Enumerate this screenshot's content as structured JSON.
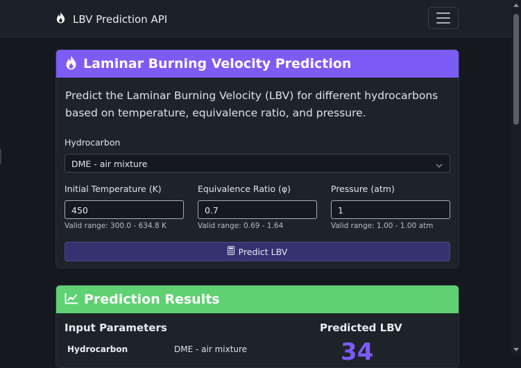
{
  "navbar": {
    "brand": "LBV Prediction API",
    "brand_icon": "flame-icon",
    "menu_icon": "hamburger-icon"
  },
  "form_card": {
    "title": "Laminar Burning Velocity Prediction",
    "title_icon": "flame-icon",
    "lead": "Predict the Laminar Burning Velocity (LBV) for different hydrocarbons based on temperature, equivalence ratio, and pressure.",
    "hydrocarbon": {
      "label": "Hydrocarbon",
      "value": "DME - air mixture"
    },
    "temperature": {
      "label": "Initial Temperature (K)",
      "value": "450",
      "hint": "Valid range: 300.0 - 634.8 K"
    },
    "equivalence": {
      "label": "Equivalence Ratio (φ)",
      "value": "0.7",
      "hint": "Valid range: 0.69 - 1.64"
    },
    "pressure": {
      "label": "Pressure (atm)",
      "value": "1",
      "hint": "Valid range: 1.00 - 1.00 atm"
    },
    "predict_button": "Predict LBV",
    "predict_icon": "calculator-icon"
  },
  "results_card": {
    "title": "Prediction Results",
    "title_icon": "chart-line-icon",
    "input_params_heading": "Input Parameters",
    "predicted_heading": "Predicted LBV",
    "rows": [
      {
        "label": "Hydrocarbon",
        "value": "DME - air mixture"
      }
    ],
    "predicted_value": "34"
  },
  "colors": {
    "accent_purple": "#7d5cf5",
    "accent_green": "#5fd172",
    "background": "#15191f"
  }
}
